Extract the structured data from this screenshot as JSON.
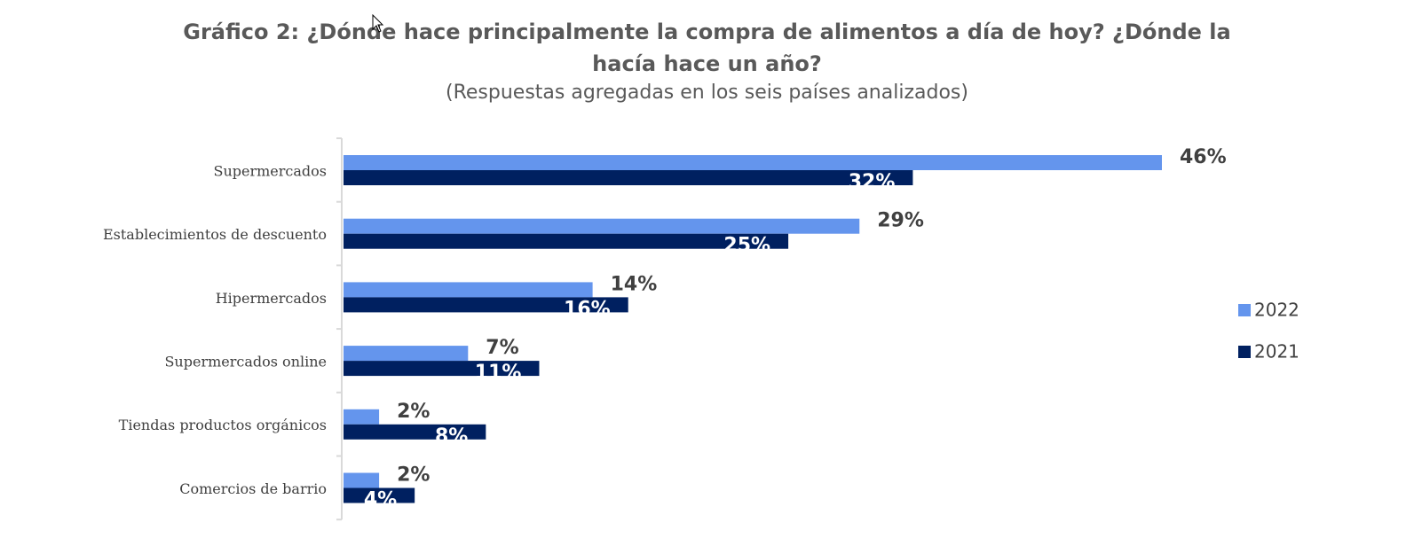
{
  "chart_data": {
    "type": "bar",
    "orientation": "horizontal",
    "title": "Gráfico 2: ¿Dónde hace principalmente la compra de alimentos a día de hoy? ¿Dónde la hacía hace un año?",
    "subtitle": "(Respuestas agregadas en los seis países analizados)",
    "categories": [
      "Supermercados",
      "Establecimientos de descuento",
      "Hipermercados",
      "Supermercados online",
      "Tiendas productos orgánicos",
      "Comercios de barrio"
    ],
    "series": [
      {
        "name": "2022",
        "color": "#6495ED",
        "values": [
          46,
          29,
          14,
          7,
          2,
          2
        ],
        "labels": [
          "46%",
          "29%",
          "14%",
          "7%",
          "2%",
          "2%"
        ]
      },
      {
        "name": "2021",
        "color": "#002060",
        "values": [
          32,
          25,
          16,
          11,
          8,
          4
        ],
        "labels": [
          "32%",
          "25%",
          "16%",
          "11%",
          "8%",
          "4%"
        ]
      }
    ],
    "xlim": [
      0,
      50
    ],
    "grid": false,
    "legend_position": "right"
  }
}
